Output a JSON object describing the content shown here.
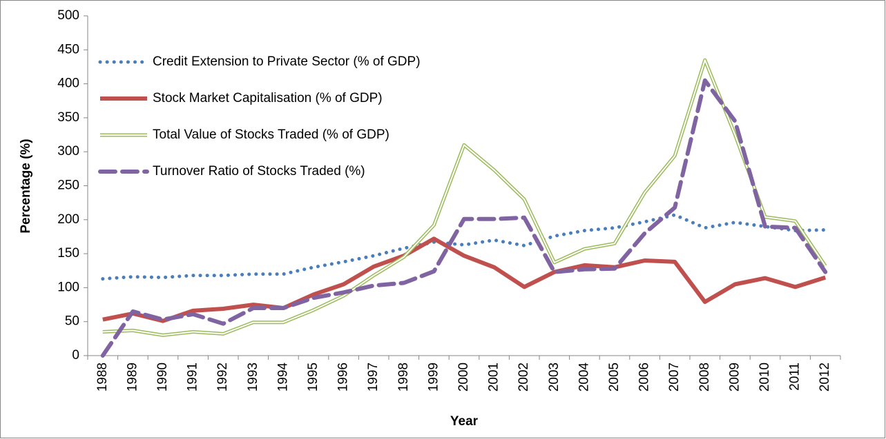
{
  "chart_data": {
    "type": "line",
    "y_axis_label": "Percentage (%)",
    "x_axis_label": "Year",
    "categories": [
      "1988",
      "1989",
      "1990",
      "1991",
      "1992",
      "1993",
      "1994",
      "1995",
      "1996",
      "1997",
      "1998",
      "1999",
      "2000",
      "2001",
      "2002",
      "2003",
      "2004",
      "2005",
      "2006",
      "2007",
      "2008",
      "2009",
      "2010",
      "2011",
      "2012"
    ],
    "series": [
      {
        "name": "Credit Extension to Private Sector (% of GDP)",
        "color": "#4a7ebb",
        "style": "dotted",
        "values": [
          113,
          116,
          115,
          118,
          118,
          120,
          120,
          130,
          138,
          147,
          158,
          167,
          163,
          170,
          162,
          176,
          184,
          188,
          197,
          207,
          188,
          196,
          190,
          184,
          185
        ]
      },
      {
        "name": "Stock Market Capitalisation (% of GDP)",
        "color": "#c0504d",
        "style": "solid",
        "values": [
          53,
          62,
          51,
          66,
          69,
          75,
          70,
          90,
          105,
          131,
          147,
          172,
          147,
          130,
          101,
          123,
          133,
          130,
          140,
          138,
          79,
          105,
          114,
          101,
          115
        ]
      },
      {
        "name": "Total Value of Stocks Traded (% of GDP)",
        "color": "#9bbb59",
        "style": "double",
        "values": [
          35,
          37,
          30,
          35,
          32,
          49,
          49,
          67,
          88,
          118,
          145,
          192,
          310,
          273,
          230,
          137,
          157,
          165,
          240,
          294,
          435,
          325,
          204,
          198,
          132
        ]
      },
      {
        "name": "Turnover Ratio of Stocks Traded (%)",
        "color": "#8064a2",
        "style": "dashed",
        "values": [
          0,
          65,
          53,
          61,
          47,
          70,
          70,
          85,
          93,
          103,
          107,
          124,
          201,
          201,
          203,
          123,
          127,
          128,
          180,
          218,
          405,
          345,
          190,
          188,
          123
        ]
      }
    ],
    "ylim": [
      0,
      500
    ],
    "yticks": [
      0,
      50,
      100,
      150,
      200,
      250,
      300,
      350,
      400,
      450,
      500
    ],
    "grid": false
  }
}
